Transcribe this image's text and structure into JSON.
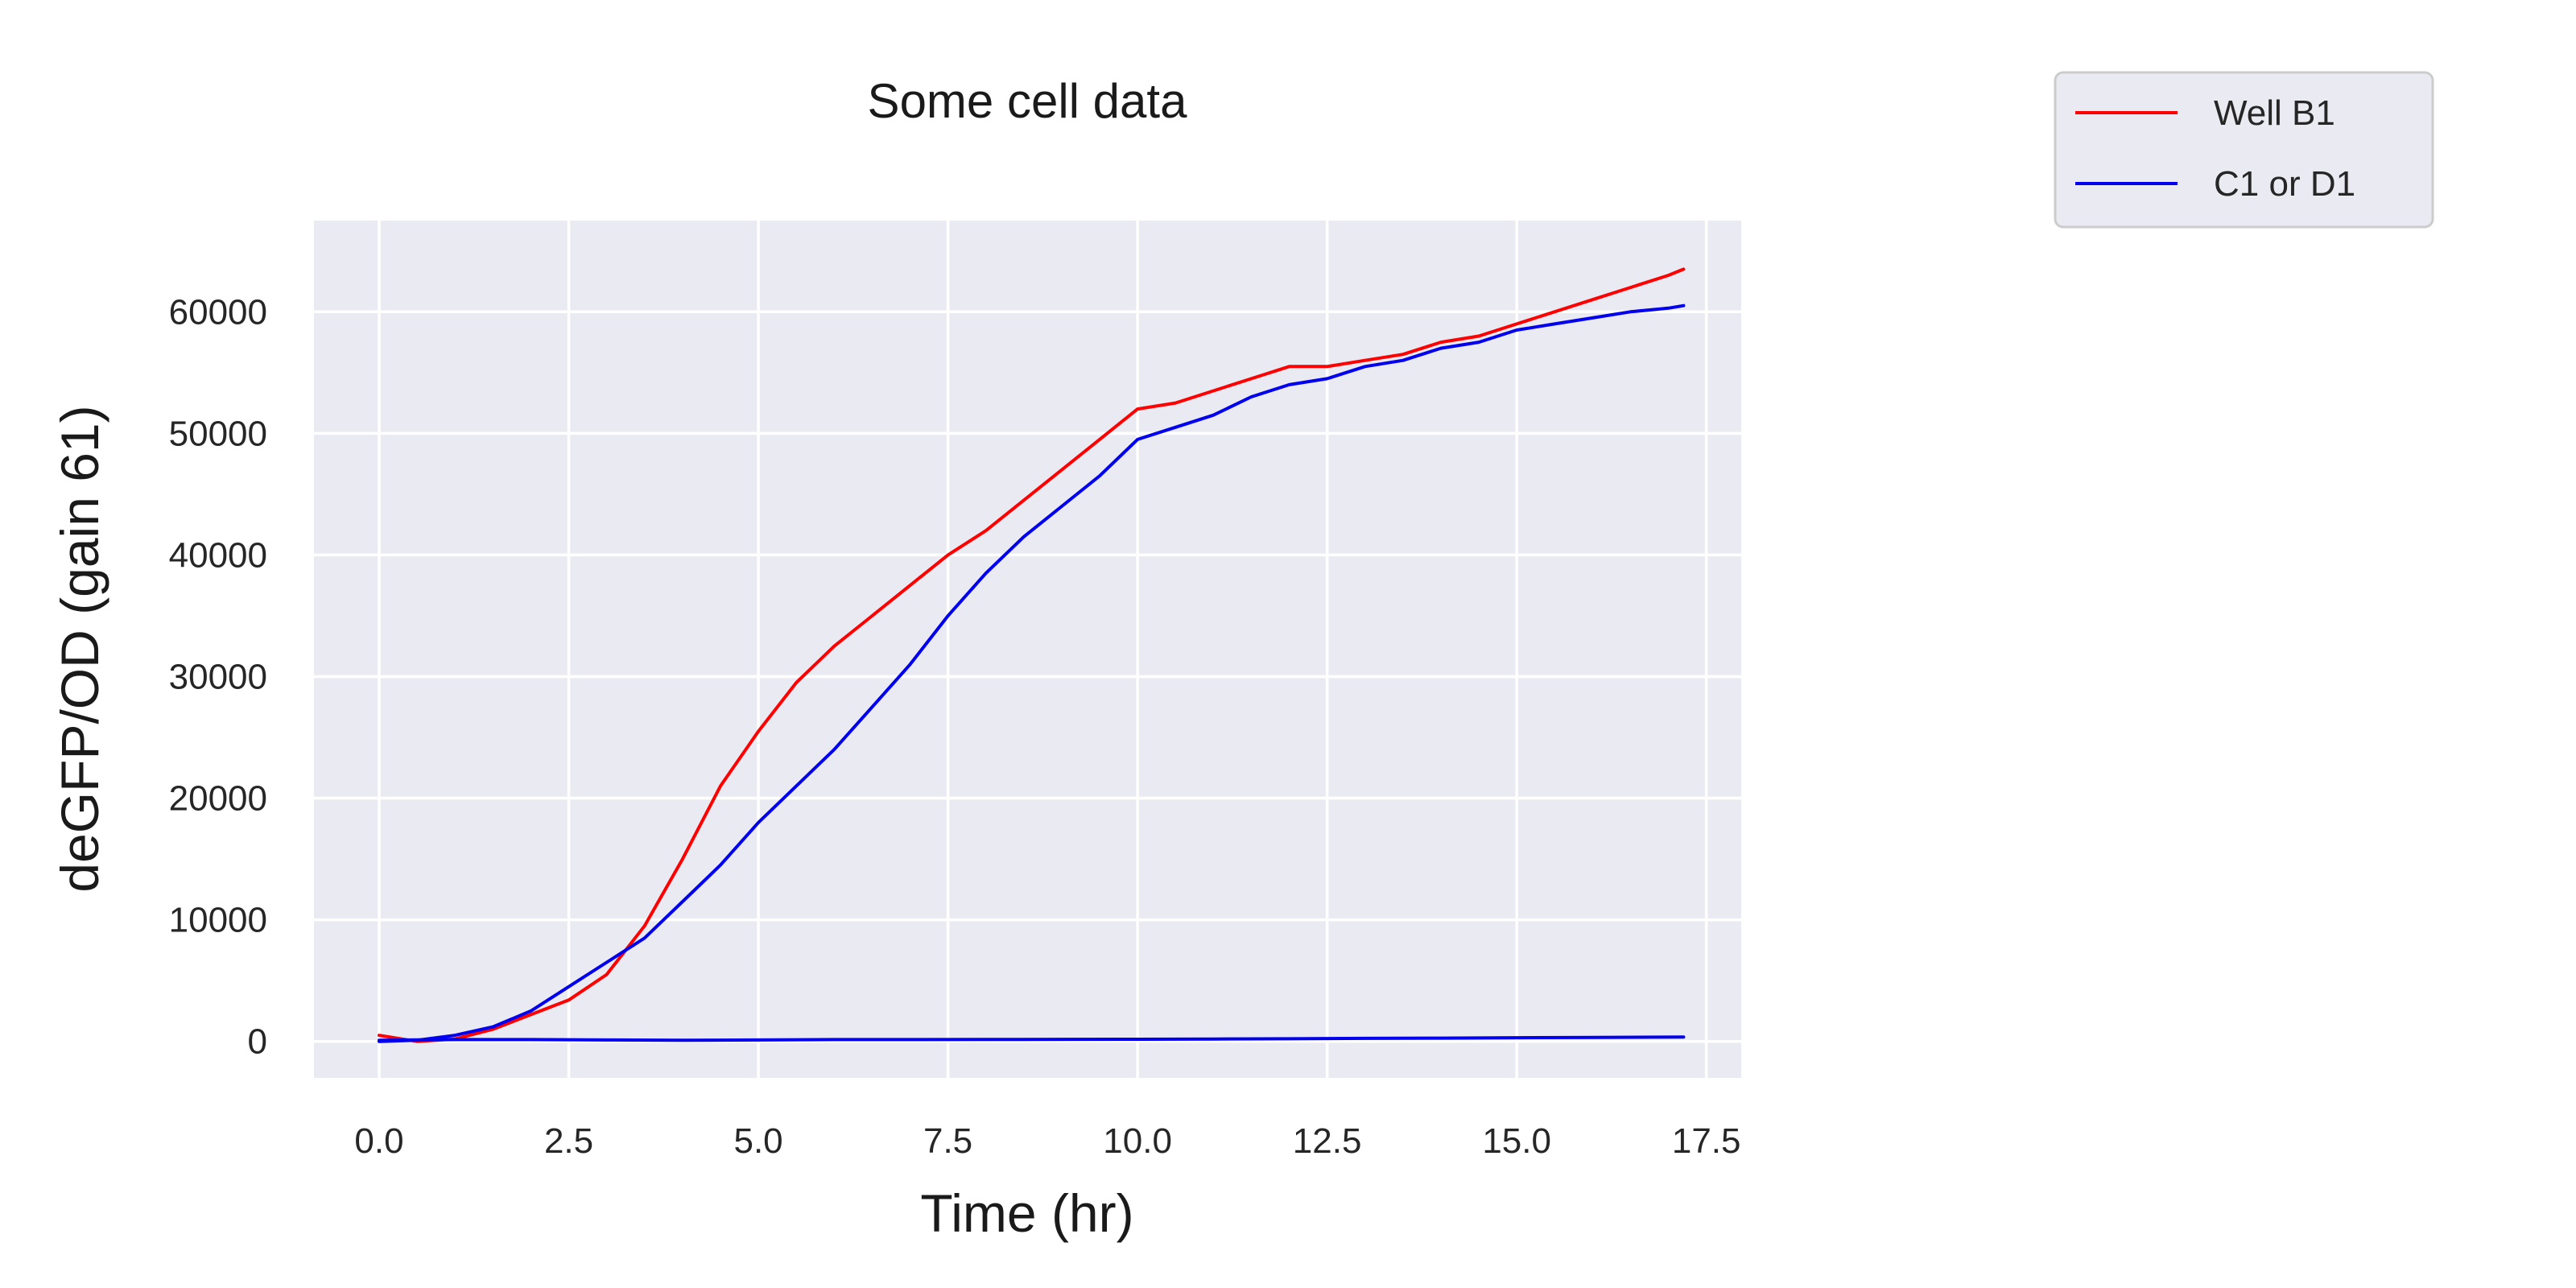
{
  "chart_data": {
    "type": "line",
    "title": "Some cell data",
    "xlabel": "Time (hr)",
    "ylabel": "deGFP/OD (gain 61)",
    "xlim": [
      -0.86,
      17.96
    ],
    "ylim": [
      -3000,
      67500
    ],
    "x_ticks": [
      0.0,
      2.5,
      5.0,
      7.5,
      10.0,
      12.5,
      15.0,
      17.5
    ],
    "x_tick_labels": [
      "0.0",
      "2.5",
      "5.0",
      "7.5",
      "10.0",
      "12.5",
      "15.0",
      "17.5"
    ],
    "y_ticks": [
      0,
      10000,
      20000,
      30000,
      40000,
      50000,
      60000
    ],
    "y_tick_labels": [
      "0",
      "10000",
      "20000",
      "30000",
      "40000",
      "50000",
      "60000"
    ],
    "grid": true,
    "legend_position": "outside top-right",
    "background": "#eaeaf2",
    "series": [
      {
        "name": "Well B1",
        "color": "#ff0000",
        "x": [
          0,
          0.5,
          1.0,
          1.5,
          2.0,
          2.5,
          3.0,
          3.5,
          4.0,
          4.5,
          5.0,
          5.5,
          6.0,
          6.5,
          7.0,
          7.5,
          8.0,
          8.5,
          9.0,
          9.5,
          10.0,
          10.5,
          11.0,
          11.5,
          12.0,
          12.5,
          13.0,
          13.5,
          14.0,
          14.5,
          15.0,
          15.5,
          16.0,
          16.5,
          17.0,
          17.2
        ],
        "y": [
          500,
          0,
          200,
          1000,
          2200,
          3400,
          5500,
          9500,
          15000,
          21000,
          25500,
          29500,
          32500,
          35000,
          37500,
          40000,
          42000,
          44500,
          47000,
          49500,
          52000,
          52500,
          53500,
          54500,
          55500,
          55500,
          56000,
          56500,
          57500,
          58000,
          59000,
          60000,
          61000,
          62000,
          63000,
          63500
        ]
      },
      {
        "name": "C1 or D1",
        "color": "#0000ee",
        "x": [
          0,
          0.5,
          1.0,
          1.5,
          2.0,
          2.5,
          3.0,
          3.5,
          4.0,
          4.5,
          5.0,
          5.5,
          6.0,
          6.5,
          7.0,
          7.5,
          8.0,
          8.5,
          9.0,
          9.5,
          10.0,
          10.5,
          11.0,
          11.5,
          12.0,
          12.5,
          13.0,
          13.5,
          14.0,
          14.5,
          15.0,
          15.5,
          16.0,
          16.5,
          17.0,
          17.2
        ],
        "y": [
          0,
          100,
          500,
          1200,
          2500,
          4500,
          6500,
          8500,
          11500,
          14500,
          18000,
          21000,
          24000,
          27500,
          31000,
          35000,
          38500,
          41500,
          44000,
          46500,
          49500,
          50500,
          51500,
          53000,
          54000,
          54500,
          55500,
          56000,
          57000,
          57500,
          58500,
          59000,
          59500,
          60000,
          60300,
          60500
        ]
      },
      {
        "name": "",
        "color": "#0000ee",
        "x": [
          0,
          1.0,
          2.0,
          3.0,
          4.0,
          5.0,
          6.0,
          7.0,
          8.0,
          9.0,
          10.0,
          11.0,
          12.0,
          13.0,
          14.0,
          15.0,
          16.0,
          17.2
        ],
        "y": [
          100,
          150,
          150,
          120,
          100,
          120,
          150,
          150,
          160,
          170,
          180,
          200,
          220,
          250,
          270,
          300,
          330,
          360
        ]
      }
    ]
  }
}
